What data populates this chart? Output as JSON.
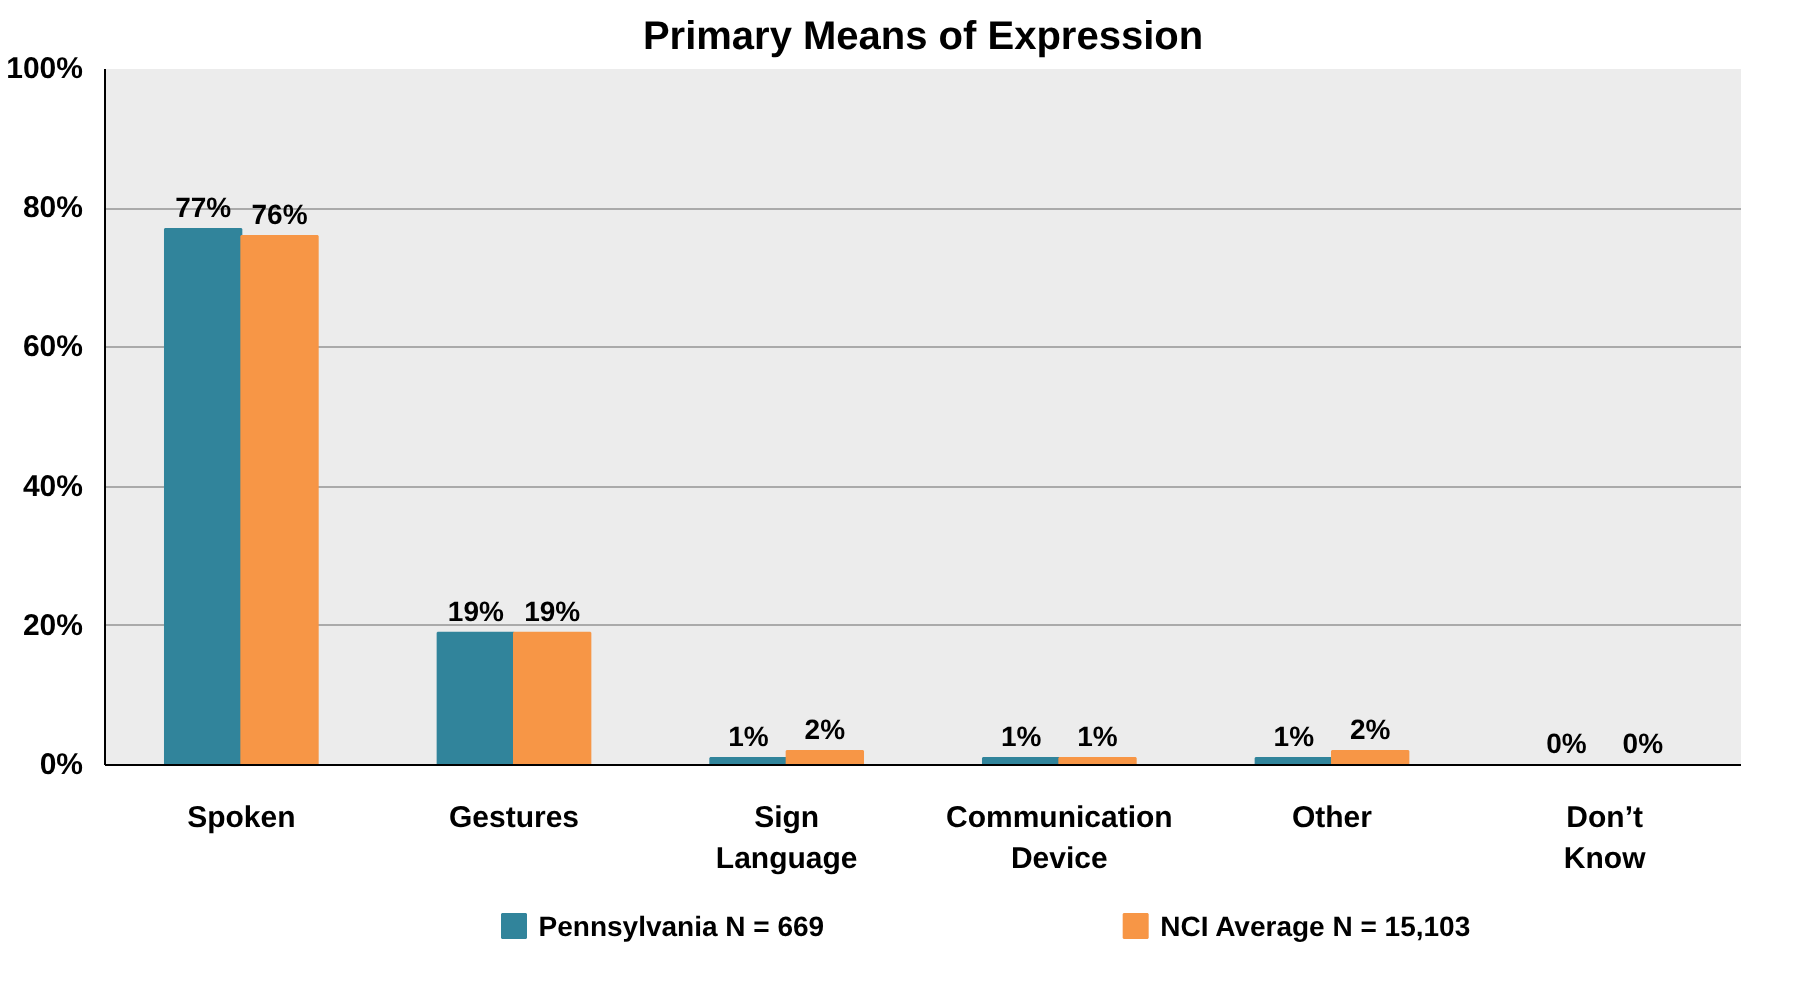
{
  "chart_data": {
    "type": "bar",
    "title": "Primary Means of Expression",
    "categories": [
      "Spoken",
      "Gestures",
      "Sign Language",
      "Communication Device",
      "Other",
      "Don’t Know"
    ],
    "series": [
      {
        "name": "Pennsylvania N = 669",
        "color": "#31849b",
        "values": [
          77,
          19,
          1,
          1,
          1,
          0
        ],
        "value_labels": [
          "77%",
          "19%",
          "1%",
          "1%",
          "1%",
          "0%"
        ]
      },
      {
        "name": "NCI Average N = 15,103",
        "color": "#f79646",
        "values": [
          76,
          19,
          2,
          1,
          2,
          0
        ],
        "value_labels": [
          "76%",
          "19%",
          "2%",
          "1%",
          "2%",
          "0%"
        ]
      }
    ],
    "ylim": [
      0,
      100
    ],
    "yticks": [
      {
        "value": 0,
        "label": "0%"
      },
      {
        "value": 20,
        "label": "20%"
      },
      {
        "value": 40,
        "label": "40%"
      },
      {
        "value": 60,
        "label": "60%"
      },
      {
        "value": 80,
        "label": "80%"
      },
      {
        "value": 100,
        "label": "100%"
      }
    ],
    "grid": "y",
    "legend": "bottom"
  }
}
